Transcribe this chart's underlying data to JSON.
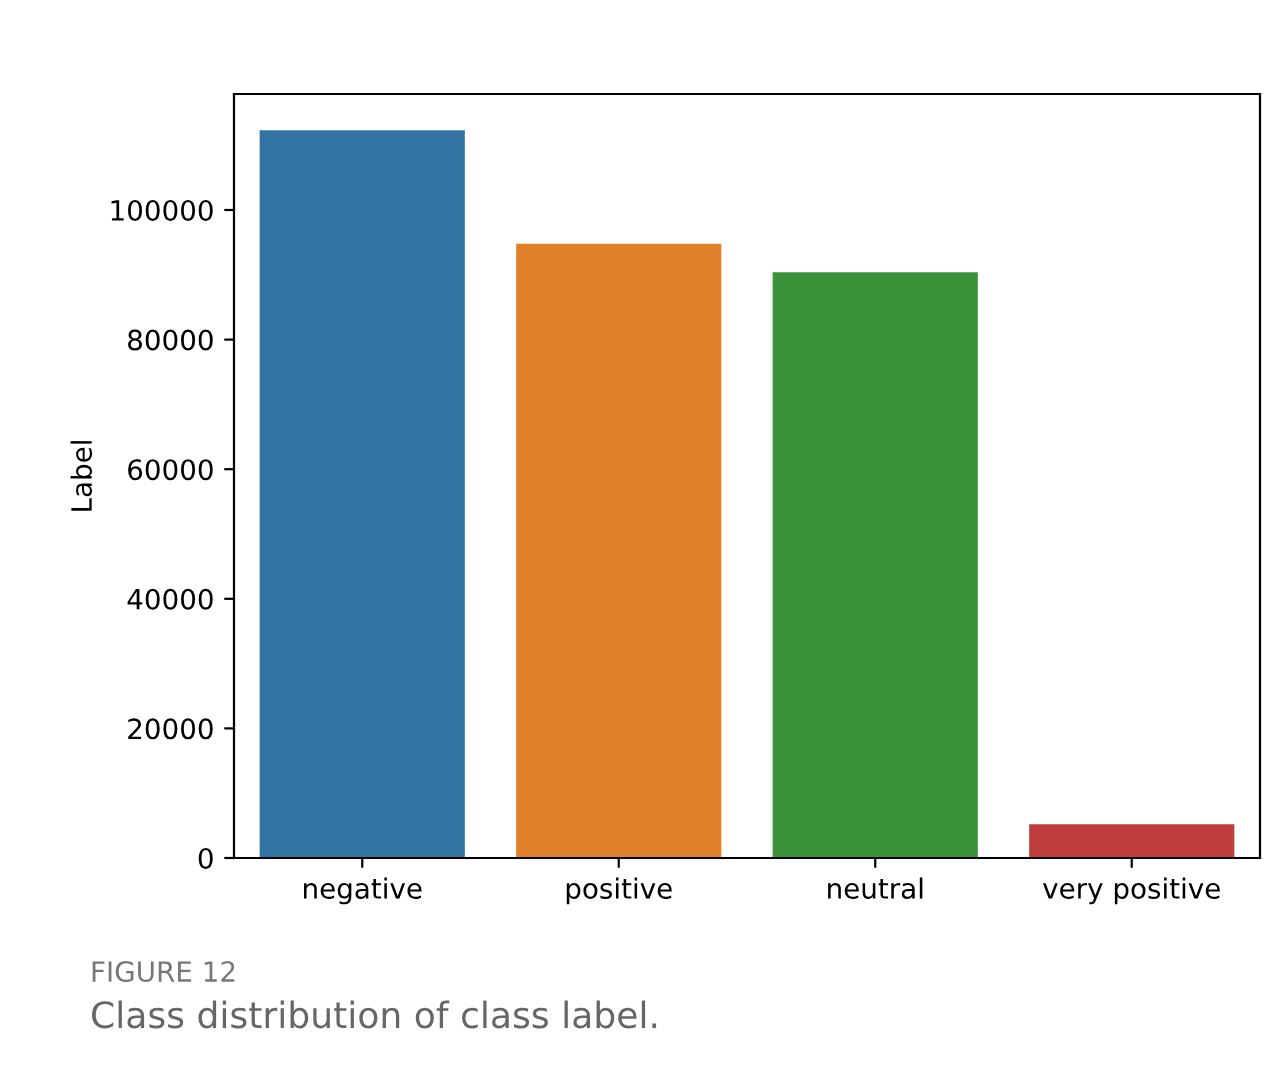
{
  "chart_data": {
    "type": "bar",
    "categories": [
      "negative",
      "positive",
      "neutral",
      "very positive"
    ],
    "values": [
      112300,
      94800,
      90400,
      5200
    ],
    "colors": [
      "#3274a1",
      "#e1812c",
      "#3a923a",
      "#c03d3e"
    ],
    "ylabel": "Label",
    "ylim": [
      0,
      117900
    ],
    "yticks": [
      0,
      20000,
      40000,
      60000,
      80000,
      100000
    ],
    "grid": false,
    "annotations": [
      "FIGURE 12",
      "Class distribution of class label."
    ]
  }
}
